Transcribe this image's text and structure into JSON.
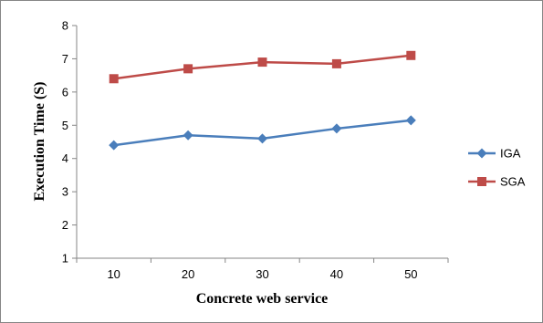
{
  "chart_data": {
    "type": "line",
    "xlabel": "Concrete web service",
    "ylabel": "Execution Time (S)",
    "categories": [
      "10",
      "20",
      "30",
      "40",
      "50"
    ],
    "ylim": [
      1,
      8
    ],
    "yticks": [
      1,
      2,
      3,
      4,
      5,
      6,
      7,
      8
    ],
    "grid": false,
    "legend_position": "right",
    "series": [
      {
        "name": "IGA",
        "values": [
          4.4,
          4.7,
          4.6,
          4.9,
          5.15
        ],
        "color": "#4a7ebb",
        "marker": "diamond"
      },
      {
        "name": "SGA",
        "values": [
          6.4,
          6.7,
          6.9,
          6.85,
          7.1
        ],
        "color": "#be4b48",
        "marker": "square"
      }
    ]
  }
}
